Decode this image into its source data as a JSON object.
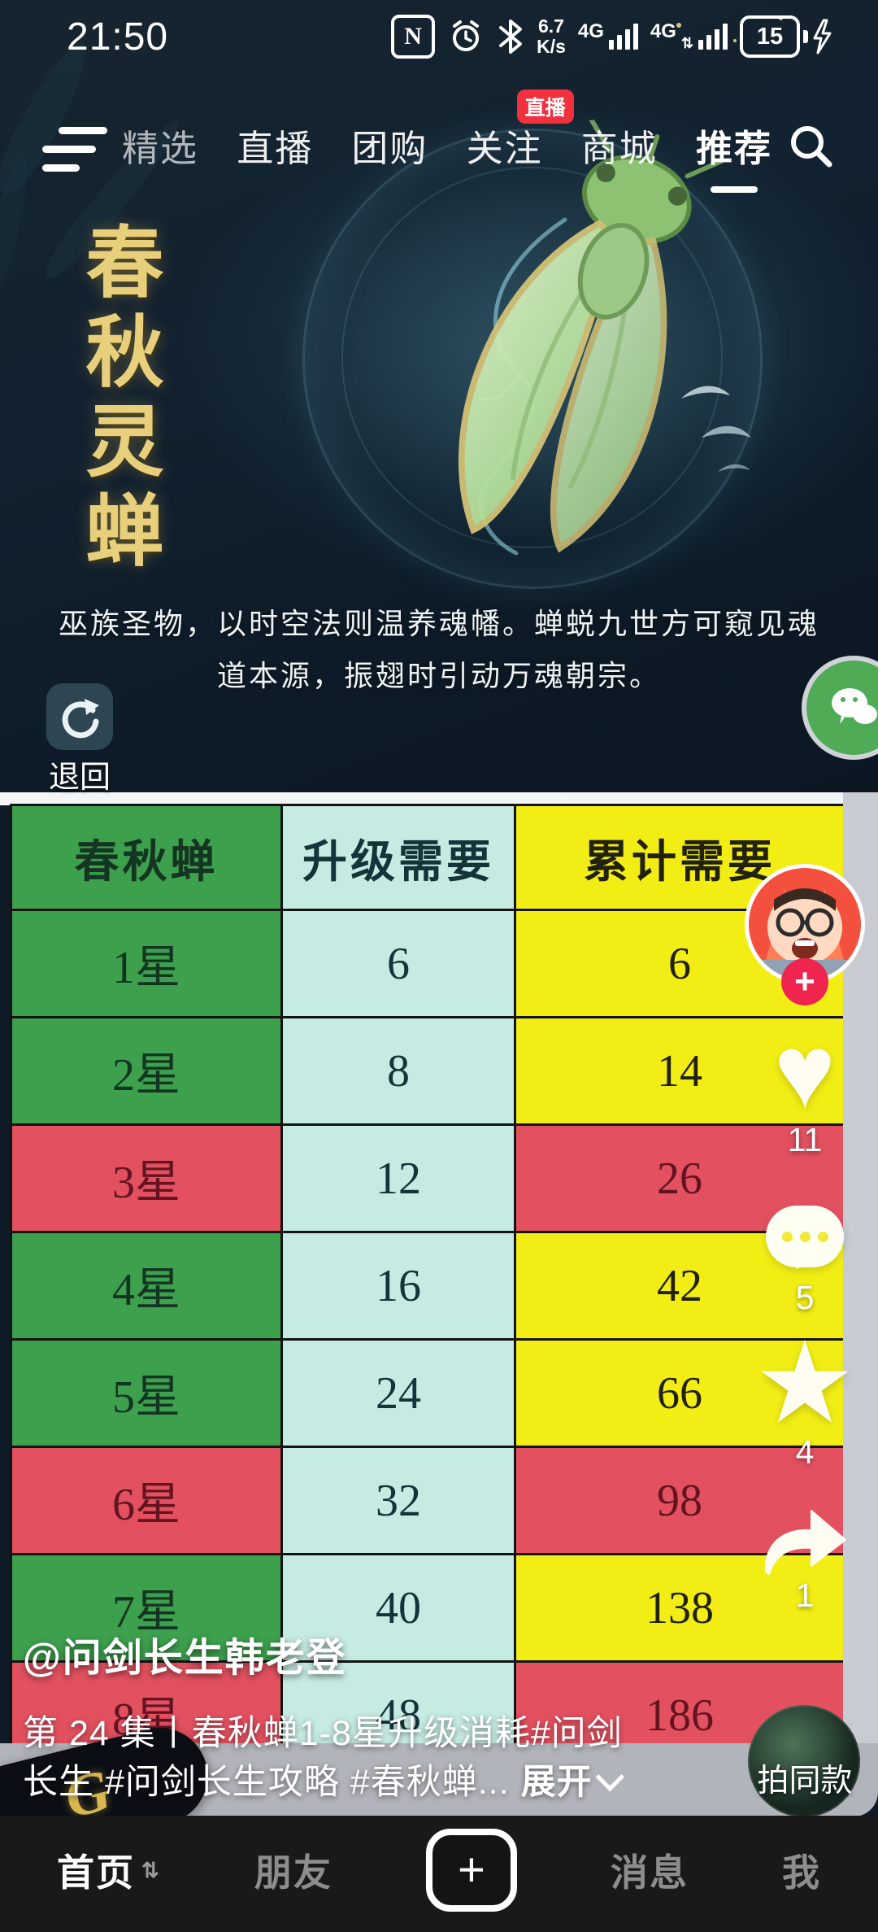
{
  "status_bar": {
    "time": "21:50",
    "net_speed_value": "6.7",
    "net_speed_unit": "K/s",
    "sim1_label": "4G",
    "sim2_label": "4G",
    "battery_level": "15",
    "nfc_glyph": "N"
  },
  "top_nav": {
    "tabs": [
      {
        "label": "精选"
      },
      {
        "label": "直播"
      },
      {
        "label": "团购"
      },
      {
        "label": "关注",
        "badge": "直播"
      },
      {
        "label": "商城"
      },
      {
        "label": "推荐",
        "active": true
      }
    ]
  },
  "video": {
    "title_vertical": "春秋灵蝉",
    "description_line1": "巫族圣物，以时空法则温养魂幡。蝉蜕九世方可窥见魂",
    "description_line2": "道本源，振翅时引动万魂朝宗。",
    "back_button_label": "退回",
    "logo_glyph": "G"
  },
  "table": {
    "headers": [
      "春秋蝉",
      "升级需要",
      "累计需要"
    ],
    "header_colors": [
      "green",
      "cyan",
      "yellow"
    ],
    "rows": [
      {
        "cells": [
          "1星",
          "6",
          "6"
        ],
        "colors": [
          "green",
          "cyan",
          "yellow"
        ]
      },
      {
        "cells": [
          "2星",
          "8",
          "14"
        ],
        "colors": [
          "green",
          "cyan",
          "yellow"
        ]
      },
      {
        "cells": [
          "3星",
          "12",
          "26"
        ],
        "colors": [
          "red",
          "cyan",
          "red"
        ]
      },
      {
        "cells": [
          "4星",
          "16",
          "42"
        ],
        "colors": [
          "green",
          "cyan",
          "yellow"
        ]
      },
      {
        "cells": [
          "5星",
          "24",
          "66"
        ],
        "colors": [
          "green",
          "cyan",
          "yellow"
        ]
      },
      {
        "cells": [
          "6星",
          "32",
          "98"
        ],
        "colors": [
          "red",
          "cyan",
          "red"
        ]
      },
      {
        "cells": [
          "7星",
          "40",
          "138"
        ],
        "colors": [
          "green",
          "cyan",
          "yellow"
        ]
      },
      {
        "cells": [
          "8星",
          "48",
          "186"
        ],
        "colors": [
          "red",
          "cyan",
          "red"
        ]
      }
    ],
    "cell_colors": {
      "green": "#3da04d",
      "cyan": "#c6ebe2",
      "yellow": "#f2ee15",
      "red": "#e35160"
    }
  },
  "action_rail": {
    "follow_label": "+",
    "like_count": "11",
    "comment_count": "5",
    "favorite_count": "4",
    "share_count": "1",
    "shoot_same_label": "拍同款"
  },
  "caption": {
    "username": "@问剑长生韩老登",
    "line1": "第 24 集丨春秋蝉1-8星升级消耗#问剑",
    "line2": "长生 #问剑长生攻略 #春秋蝉...",
    "expand_label": "展开"
  },
  "bottom_nav": {
    "items": [
      {
        "label": "首页",
        "active": true,
        "has_sort_icon": true
      },
      {
        "label": "朋友"
      },
      {
        "label": "+",
        "is_plus": true
      },
      {
        "label": "消息"
      },
      {
        "label": "我"
      }
    ]
  }
}
